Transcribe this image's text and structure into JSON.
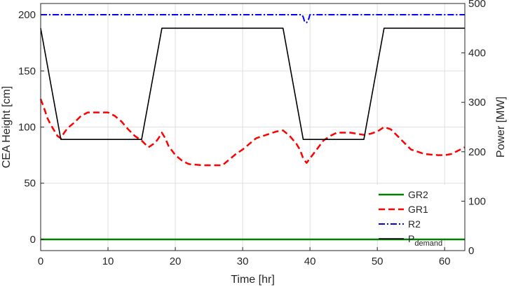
{
  "chart_data": {
    "type": "line",
    "xlabel": "Time [hr]",
    "ylabel_left": "CEA Height [cm]",
    "ylabel_right": "Power [MW]",
    "xlim": [
      0,
      63
    ],
    "ylim_left": [
      -10,
      210
    ],
    "ylim_right": [
      0,
      500
    ],
    "xticks": [
      0,
      10,
      20,
      30,
      40,
      50,
      60
    ],
    "yticks_left": [
      0,
      50,
      100,
      150,
      200
    ],
    "yticks_right": [
      0,
      100,
      200,
      300,
      400,
      500
    ],
    "grid": true,
    "legend_placement": "lower-right",
    "series": [
      {
        "name": "GR2",
        "axis": "left",
        "color": "#008000",
        "style": "solid",
        "x": [
          0,
          63
        ],
        "y": [
          0,
          0
        ]
      },
      {
        "name": "GR1",
        "axis": "left",
        "color": "#ff0000",
        "style": "dashed",
        "x": [
          0,
          0.5,
          1,
          1.5,
          2,
          2.5,
          3,
          3.5,
          4,
          5,
          6,
          7,
          8,
          9,
          10,
          11,
          12,
          13,
          14,
          15,
          16,
          17,
          17.5,
          18,
          18.5,
          19,
          20,
          21,
          22,
          24,
          26,
          27,
          28,
          29,
          30,
          31,
          32,
          33,
          34,
          35,
          36,
          37,
          38,
          38.5,
          39,
          39.5,
          40,
          41,
          42,
          43,
          44,
          46,
          47,
          48,
          49,
          50,
          51,
          52,
          53,
          54,
          55,
          57,
          59,
          60,
          61,
          62,
          63
        ],
        "y": [
          125,
          117,
          108,
          102,
          97,
          92,
          90,
          95,
          99,
          104,
          110,
          113,
          113,
          113,
          113,
          110,
          105,
          98,
          92,
          88,
          82,
          86,
          90,
          95,
          90,
          83,
          75,
          70,
          67,
          66,
          66,
          66,
          71,
          76,
          80,
          85,
          90,
          92,
          94,
          96,
          97,
          92,
          85,
          80,
          72,
          68,
          72,
          80,
          88,
          92,
          95,
          95,
          94,
          93,
          94,
          96,
          100,
          98,
          92,
          86,
          80,
          76,
          75,
          75,
          76,
          79,
          82
        ]
      },
      {
        "name": "R2",
        "axis": "left",
        "color": "#0000ff",
        "style": "dashdot",
        "x": [
          0,
          38.8,
          39.0,
          39.2,
          39.5,
          39.8,
          40.0,
          63
        ],
        "y": [
          200,
          200,
          198,
          194,
          193,
          196,
          200,
          200
        ]
      },
      {
        "name": "P",
        "name_sub": "demand",
        "axis": "right",
        "color": "#000000",
        "style": "solid",
        "x": [
          0,
          3,
          15,
          18,
          36,
          39,
          48,
          51,
          63
        ],
        "y": [
          450,
          225,
          225,
          450,
          450,
          225,
          225,
          450,
          450
        ]
      }
    ]
  }
}
